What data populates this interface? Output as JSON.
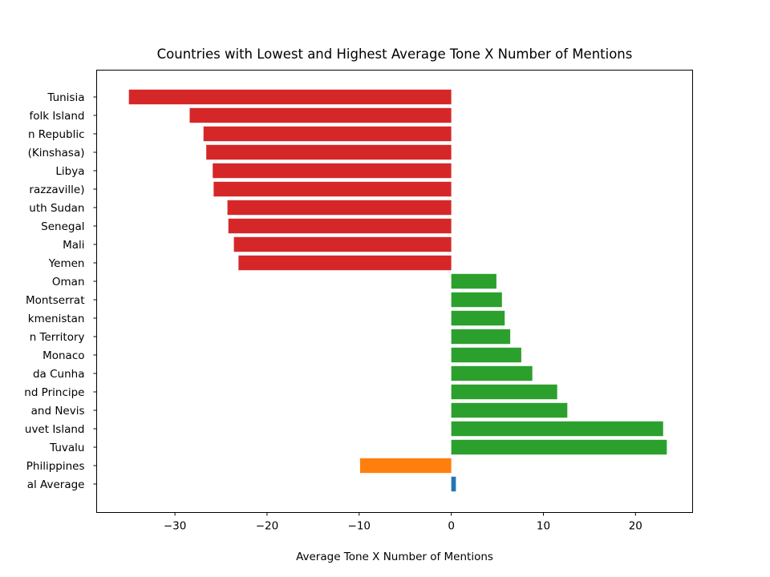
{
  "chart_data": {
    "type": "bar",
    "orientation": "horizontal",
    "title": "Countries with Lowest and Highest Average Tone X Number of Mentions",
    "xlabel": "Average Tone X Number of Mentions",
    "ylabel": "",
    "xlim": [
      -38.5,
      26.2
    ],
    "xticks": [
      -30,
      -20,
      -10,
      0,
      10,
      20
    ],
    "xtick_labels": [
      "−30",
      "−20",
      "−10",
      "0",
      "10",
      "20"
    ],
    "grid": false,
    "legend": "none",
    "categories": [
      "Tunisia",
      "folk Island",
      "n Republic",
      "(Kinshasa)",
      "Libya",
      "razzaville)",
      "uth Sudan",
      "Senegal",
      "Mali",
      "Yemen",
      "Oman",
      "Montserrat",
      "kmenistan",
      "n Territory",
      "Monaco",
      "da Cunha",
      "nd Principe",
      "and Nevis",
      "uvet Island",
      "Tuvalu",
      "Philippines",
      "al Average"
    ],
    "values": [
      -35.0,
      -28.4,
      -26.9,
      -26.6,
      -25.9,
      -25.8,
      -24.3,
      -24.2,
      -23.6,
      -23.1,
      4.9,
      5.5,
      5.8,
      6.4,
      7.6,
      8.8,
      11.5,
      12.6,
      23.0,
      23.4,
      -9.9,
      0.5
    ],
    "bar_colors": [
      "#d62728",
      "#d62728",
      "#d62728",
      "#d62728",
      "#d62728",
      "#d62728",
      "#d62728",
      "#d62728",
      "#d62728",
      "#d62728",
      "#2ca02c",
      "#2ca02c",
      "#2ca02c",
      "#2ca02c",
      "#2ca02c",
      "#2ca02c",
      "#2ca02c",
      "#2ca02c",
      "#2ca02c",
      "#2ca02c",
      "#ff7f0e",
      "#1f77b4"
    ]
  }
}
